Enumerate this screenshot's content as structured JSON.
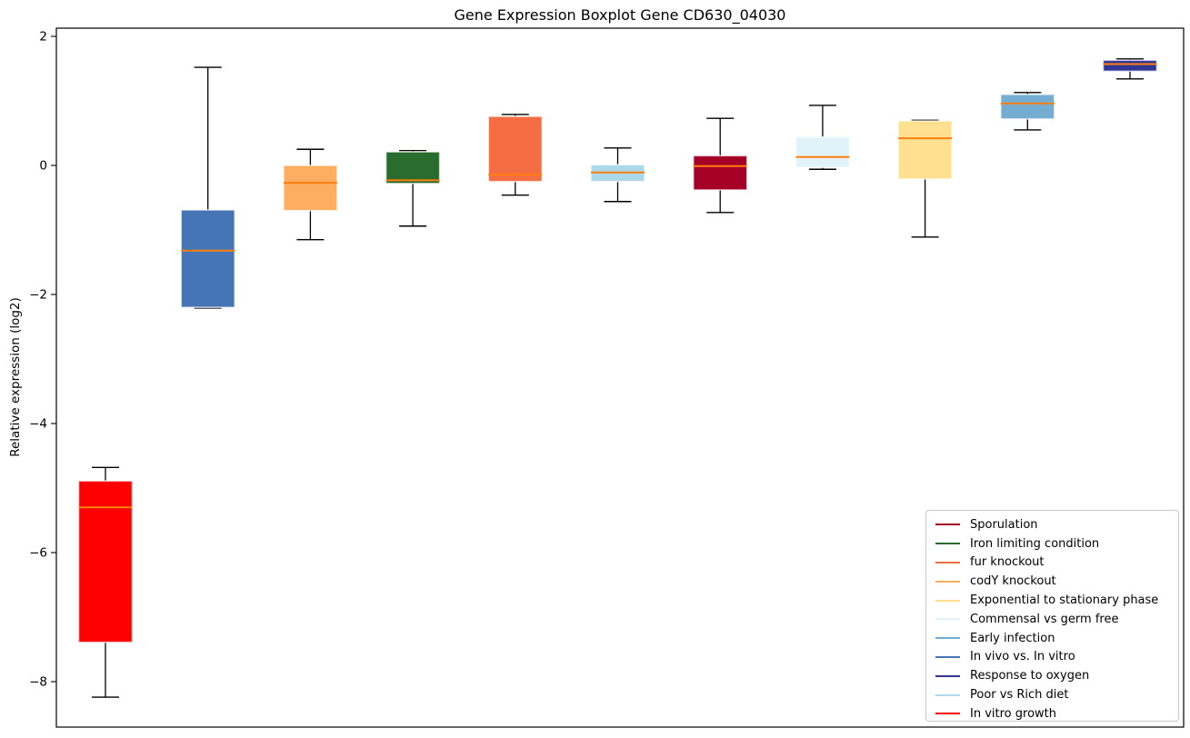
{
  "chart_data": {
    "type": "boxplot",
    "title": "Gene Expression Boxplot Gene CD630_04030",
    "ylabel": "Relative expression (log2)",
    "xlabel": "",
    "ylim": [
      -8.7,
      2.13
    ],
    "yticks": [
      2,
      0,
      -2,
      -4,
      -6,
      -8
    ],
    "yticklabels": [
      "2",
      "0",
      "−2",
      "−4",
      "−6",
      "−8"
    ],
    "grid": false,
    "median_color": "#FF7F0E",
    "whisker_color": "#000000",
    "series": [
      {
        "name": "In vitro growth",
        "color": "#FF0000",
        "whislo": -8.24,
        "q1": -7.39,
        "med": -5.3,
        "q3": -4.89,
        "whishi": -4.68
      },
      {
        "name": "In vivo vs. In vitro",
        "color": "#4575B4",
        "whislo": -2.21,
        "q1": -2.2,
        "med": -1.32,
        "q3": -0.69,
        "whishi": 1.52
      },
      {
        "name": "codY knockout",
        "color": "#FDAE61",
        "whislo": -1.15,
        "q1": -0.7,
        "med": -0.27,
        "q3": 0.0,
        "whishi": 0.25
      },
      {
        "name": "Iron limiting condition",
        "color": "#2A6B2E",
        "whislo": -0.94,
        "q1": -0.28,
        "med": -0.23,
        "q3": 0.21,
        "whishi": 0.23
      },
      {
        "name": "fur knockout",
        "color": "#F46D43",
        "whislo": -0.46,
        "q1": -0.25,
        "med": -0.14,
        "q3": 0.76,
        "whishi": 0.79
      },
      {
        "name": "Poor vs Rich diet",
        "color": "#ABD9E9",
        "whislo": -0.56,
        "q1": -0.25,
        "med": -0.11,
        "q3": 0.01,
        "whishi": 0.27
      },
      {
        "name": "Sporulation",
        "color": "#A50026",
        "whislo": -0.73,
        "q1": -0.38,
        "med": -0.01,
        "q3": 0.15,
        "whishi": 0.73
      },
      {
        "name": "Commensal vs germ free",
        "color": "#E0F3F8",
        "whislo": -0.06,
        "q1": -0.03,
        "med": 0.13,
        "q3": 0.44,
        "whishi": 0.93
      },
      {
        "name": "Exponential to stationary phase",
        "color": "#FEE090",
        "whislo": -1.11,
        "q1": -0.21,
        "med": 0.42,
        "q3": 0.69,
        "whishi": 0.7
      },
      {
        "name": "Early infection",
        "color": "#74ADD1",
        "whislo": 0.55,
        "q1": 0.72,
        "med": 0.96,
        "q3": 1.1,
        "whishi": 1.13
      },
      {
        "name": "Response to oxygen",
        "color": "#313695",
        "whislo": 1.34,
        "q1": 1.46,
        "med": 1.57,
        "q3": 1.63,
        "whishi": 1.65
      }
    ],
    "legend": {
      "position": "lower right",
      "entries": [
        {
          "label": "Sporulation",
          "color": "#A50026"
        },
        {
          "label": "Iron limiting condition",
          "color": "#2A6B2E"
        },
        {
          "label": "fur knockout",
          "color": "#F46D43"
        },
        {
          "label": "codY knockout",
          "color": "#FDAE61"
        },
        {
          "label": "Exponential to stationary phase",
          "color": "#FEE090"
        },
        {
          "label": "Commensal vs germ free",
          "color": "#E0F3F8"
        },
        {
          "label": "Early infection",
          "color": "#74ADD1"
        },
        {
          "label": "In vivo vs. In vitro",
          "color": "#4575B4"
        },
        {
          "label": "Response to oxygen",
          "color": "#313695"
        },
        {
          "label": "Poor vs Rich diet",
          "color": "#ABD9E9"
        },
        {
          "label": "In vitro growth",
          "color": "#FF0000"
        }
      ]
    }
  }
}
